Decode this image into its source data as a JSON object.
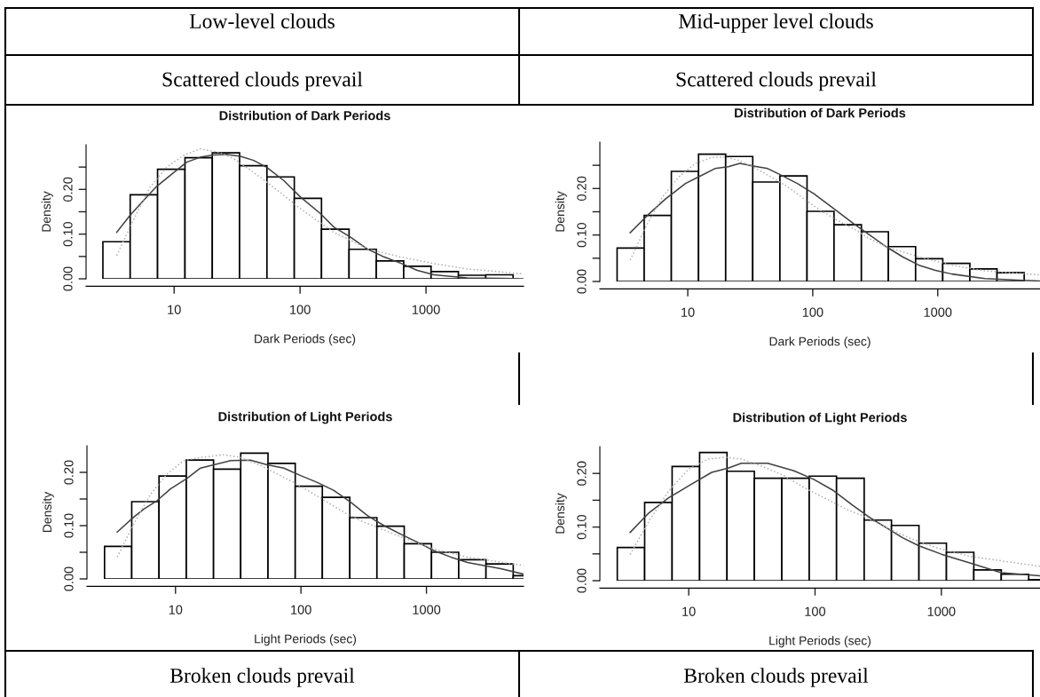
{
  "chart_data": [
    {
      "type": "histogram",
      "title": "Distribution of Dark Periods",
      "xlabel": "Dark Periods (sec)",
      "ylabel": "Density",
      "log": "x",
      "color": "#ffffff",
      "annotations": [
        "Low-level clouds",
        "Scattered clouds prevail"
      ],
      "bins": [
        2.72,
        4.48,
        7.39,
        12.2,
        20.1,
        33.1,
        54.6,
        90.0,
        148,
        245,
        403,
        665,
        1097,
        1808,
        2981,
        4915,
        8103
      ],
      "values": [
        0.083,
        0.188,
        0.245,
        0.271,
        0.282,
        0.253,
        0.228,
        0.18,
        0.111,
        0.066,
        0.04,
        0.028,
        0.016,
        0.008,
        0.009,
        null
      ],
      "xlim": [
        2.0,
        5950
      ],
      "xticks": [
        10,
        100,
        1000
      ],
      "ylim": [
        0,
        0.3
      ],
      "yticks": [
        {
          "value": 0,
          "label": "0.00"
        },
        {
          "value": 0.05,
          "label": null
        },
        {
          "value": 0.1,
          "label": "0.10"
        },
        {
          "value": 0.15,
          "label": null
        },
        {
          "value": 0.2,
          "label": "0.20"
        },
        {
          "value": 0.25,
          "label": null
        }
      ],
      "series": [
        {
          "type": "line",
          "color": "#404040",
          "line_style": "solid",
          "x": [
            3.5,
            4.47,
            5.7,
            7.28,
            9.88,
            12.6,
            16.1,
            20.6,
            26.2,
            33.5,
            42.8,
            54.6,
            74.1,
            100.7,
            145,
            185,
            252,
            341,
            463,
            628,
            853,
            1158,
            2133,
            3927,
            5950
          ],
          "values": [
            0.104,
            0.142,
            0.175,
            0.207,
            0.237,
            0.261,
            0.272,
            0.277,
            0.278,
            0.274,
            0.265,
            0.249,
            0.22,
            0.183,
            0.146,
            0.116,
            0.093,
            0.067,
            0.049,
            0.035,
            0.019,
            0.009,
            0.002,
            0.001,
            0.0
          ]
        },
        {
          "type": "line",
          "color": "#b0b0b0",
          "line_style": "dotted",
          "x": [
            3.5,
            4.74,
            6.44,
            8.75,
            11.9,
            16.1,
            21.9,
            29.7,
            40.3,
            54.6,
            74.1,
            100.7,
            136,
            185,
            252,
            341,
            628,
            1158,
            2133,
            5950
          ],
          "values": [
            0.052,
            0.131,
            0.205,
            0.25,
            0.276,
            0.291,
            0.284,
            0.269,
            0.243,
            0.216,
            0.187,
            0.157,
            0.131,
            0.104,
            0.086,
            0.067,
            0.049,
            0.034,
            0.022,
            0.011
          ]
        }
      ]
    },
    {
      "type": "histogram",
      "title": "Distribution of Dark Periods",
      "xlabel": "Dark Periods (sec)",
      "ylabel": "Density",
      "log": "x",
      "color": "#ffffff",
      "annotations": [
        "Mid-upper level clouds",
        "Scattered clouds prevail"
      ],
      "bins": [
        2.72,
        4.48,
        7.39,
        12.2,
        20.1,
        33.1,
        54.6,
        90.0,
        148,
        245,
        403,
        665,
        1097,
        1808,
        2981,
        4915,
        8103
      ],
      "values": [
        0.072,
        0.142,
        0.237,
        0.274,
        0.269,
        0.214,
        0.227,
        0.151,
        0.122,
        0.107,
        0.075,
        0.049,
        0.039,
        0.027,
        0.019,
        null
      ],
      "xlim": [
        1.98,
        6580
      ],
      "xticks": [
        10,
        100,
        1000
      ],
      "ylim": [
        0,
        0.3
      ],
      "yticks": [
        {
          "value": 0,
          "label": "0.00"
        },
        {
          "value": 0.05,
          "label": null
        },
        {
          "value": 0.1,
          "label": "0.10"
        },
        {
          "value": 0.15,
          "label": null
        },
        {
          "value": 0.2,
          "label": "0.20"
        },
        {
          "value": 0.25,
          "label": null
        }
      ],
      "series": [
        {
          "type": "line",
          "color": "#404040",
          "line_style": "solid",
          "x": [
            3.46,
            4.92,
            6.66,
            9.59,
            12.2,
            16.5,
            21.1,
            26.1,
            34.2,
            43.6,
            55.6,
            75.2,
            102,
            147,
            211,
            285,
            386,
            523,
            708,
            959,
            1298,
            2378,
            4355,
            6560
          ],
          "values": [
            0.105,
            0.146,
            0.178,
            0.211,
            0.225,
            0.243,
            0.247,
            0.254,
            0.248,
            0.243,
            0.229,
            0.211,
            0.189,
            0.157,
            0.125,
            0.1,
            0.075,
            0.053,
            0.035,
            0.024,
            0.016,
            0.006,
            0.003,
            0.001
          ]
        },
        {
          "type": "line",
          "color": "#b0b0b0",
          "line_style": "dotted",
          "x": [
            3.46,
            4.63,
            6.27,
            8.49,
            11.5,
            15.6,
            19.8,
            25.3,
            34.2,
            46.3,
            62.7,
            84.9,
            115,
            156,
            211,
            285,
            386,
            708,
            1298,
            2378,
            6560
          ],
          "values": [
            0.046,
            0.118,
            0.182,
            0.225,
            0.254,
            0.267,
            0.268,
            0.261,
            0.245,
            0.225,
            0.204,
            0.178,
            0.153,
            0.132,
            0.114,
            0.092,
            0.075,
            0.053,
            0.035,
            0.023,
            0.014
          ]
        }
      ]
    },
    {
      "type": "histogram",
      "title": "Distribution of Light Periods",
      "xlabel": "Light Periods (sec)",
      "ylabel": "Density",
      "log": "x",
      "color": "#ffffff",
      "annotations": [
        "Broken clouds prevail"
      ],
      "bins": [
        2.72,
        4.48,
        7.39,
        12.2,
        20.1,
        33.1,
        54.6,
        90.0,
        148,
        245,
        403,
        665,
        1097,
        1808,
        2981,
        4915,
        8103
      ],
      "values": [
        0.061,
        0.145,
        0.193,
        0.223,
        0.206,
        0.236,
        0.217,
        0.174,
        0.153,
        0.115,
        0.099,
        0.066,
        0.05,
        0.036,
        0.028,
        0.006
      ],
      "xlim": [
        1.97,
        5940
      ],
      "xticks": [
        10,
        100,
        1000
      ],
      "ylim": [
        0,
        0.25
      ],
      "yticks": [
        {
          "value": 0,
          "label": "0.00"
        },
        {
          "value": 0.05,
          "label": null
        },
        {
          "value": 0.1,
          "label": "0.10"
        },
        {
          "value": 0.15,
          "label": null
        },
        {
          "value": 0.2,
          "label": "0.20"
        }
      ],
      "series": [
        {
          "type": "line",
          "color": "#404040",
          "line_style": "solid",
          "x": [
            3.43,
            4.65,
            5.59,
            7.14,
            9.12,
            12.4,
            15.8,
            20.2,
            27.5,
            39.6,
            53.8,
            73.1,
            99.4,
            135,
            183,
            249,
            338,
            459,
            624,
            847,
            1151,
            1563,
            2123,
            3917,
            5930
          ],
          "values": [
            0.088,
            0.116,
            0.131,
            0.147,
            0.169,
            0.189,
            0.208,
            0.214,
            0.222,
            0.223,
            0.214,
            0.208,
            0.194,
            0.181,
            0.166,
            0.144,
            0.119,
            0.1,
            0.084,
            0.069,
            0.053,
            0.041,
            0.031,
            0.019,
            0.009
          ]
        },
        {
          "type": "line",
          "color": "#b0b0b0",
          "line_style": "dotted",
          "x": [
            3.43,
            4.65,
            6.32,
            8.59,
            11.6,
            15.8,
            24.3,
            33.0,
            47.6,
            64.7,
            87.9,
            119,
            162,
            220,
            299,
            406,
            552,
            750,
            1151,
            2123,
            5930
          ],
          "values": [
            0.041,
            0.103,
            0.159,
            0.197,
            0.222,
            0.228,
            0.233,
            0.228,
            0.213,
            0.197,
            0.181,
            0.163,
            0.144,
            0.125,
            0.109,
            0.097,
            0.084,
            0.072,
            0.056,
            0.041,
            0.025
          ]
        }
      ]
    },
    {
      "type": "histogram",
      "title": "Distribution of Light Periods",
      "xlabel": "Light Periods (sec)",
      "ylabel": "Density",
      "log": "x",
      "color": "#ffffff",
      "annotations": [
        "Broken clouds prevail"
      ],
      "bins": [
        2.72,
        4.48,
        7.39,
        12.2,
        20.1,
        33.1,
        54.6,
        90.0,
        148,
        245,
        403,
        665,
        1097,
        1808,
        2981,
        4915,
        8103
      ],
      "values": [
        0.062,
        0.146,
        0.213,
        0.239,
        0.204,
        0.191,
        0.191,
        0.195,
        0.191,
        0.113,
        0.103,
        0.07,
        0.053,
        0.02,
        0.012,
        0.002
      ],
      "xlim": [
        1.98,
        6040
      ],
      "xticks": [
        10,
        100,
        1000
      ],
      "ylim": [
        0,
        0.25
      ],
      "yticks": [
        {
          "value": 0,
          "label": "0.00"
        },
        {
          "value": 0.05,
          "label": null
        },
        {
          "value": 0.1,
          "label": "0.10"
        },
        {
          "value": 0.15,
          "label": null
        },
        {
          "value": 0.2,
          "label": "0.20"
        }
      ],
      "series": [
        {
          "type": "line",
          "color": "#404040",
          "line_style": "solid",
          "x": [
            3.44,
            4.87,
            6.98,
            10,
            15.2,
            20.5,
            26.1,
            42.2,
            68.1,
            97.7,
            140,
            200,
            270,
            365,
            493,
            665,
            1012,
            1636,
            2979,
            6030
          ],
          "values": [
            0.09,
            0.127,
            0.155,
            0.177,
            0.202,
            0.21,
            0.219,
            0.219,
            0.205,
            0.189,
            0.168,
            0.14,
            0.118,
            0.099,
            0.08,
            0.065,
            0.049,
            0.034,
            0.015,
            0.009
          ]
        },
        {
          "type": "line",
          "color": "#b0b0b0",
          "line_style": "dotted",
          "x": [
            3.44,
            4.87,
            6.98,
            10,
            14.3,
            19.3,
            26.1,
            37.4,
            56.9,
            81.5,
            124,
            178,
            255,
            365,
            556,
            898,
            1636,
            2979,
            6030
          ],
          "values": [
            0.049,
            0.112,
            0.168,
            0.208,
            0.227,
            0.23,
            0.227,
            0.214,
            0.196,
            0.174,
            0.152,
            0.133,
            0.118,
            0.099,
            0.08,
            0.062,
            0.046,
            0.037,
            0.027
          ]
        }
      ]
    }
  ]
}
